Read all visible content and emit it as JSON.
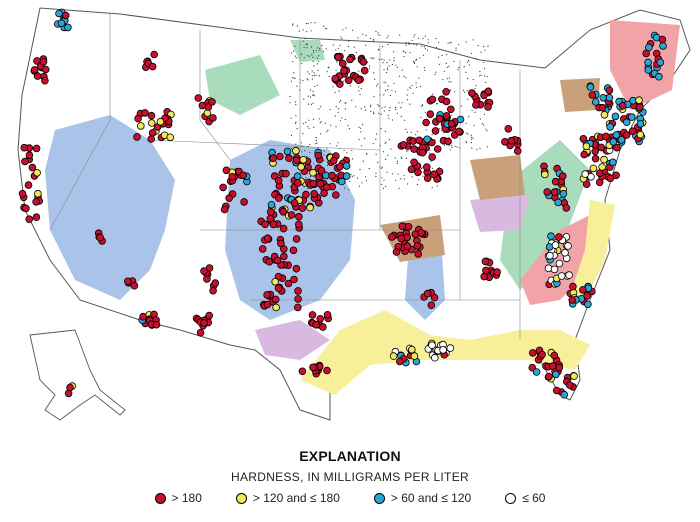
{
  "explanation": {
    "title": "EXPLANATION",
    "subtitle": "HARDNESS, IN MILLIGRAMS PER LITER"
  },
  "legend": [
    {
      "label": "> 180",
      "color": "#c8102e"
    },
    {
      "label": "> 120 and ≤ 180",
      "color": "#f2e85a"
    },
    {
      "label": "> 60 and ≤ 120",
      "color": "#2aa6d6"
    },
    {
      "label": "≤ 60",
      "color": "#ffffff"
    }
  ],
  "colors": {
    "outline": "#555555",
    "aquifer_blue": "#a9c4e8",
    "aquifer_green": "#a8dcbc",
    "aquifer_pink": "#f2a3a8",
    "aquifer_yellow": "#f7ef9a",
    "aquifer_purple": "#d9b9e0",
    "aquifer_brown": "#c9a07a",
    "stipple": "#333333"
  }
}
